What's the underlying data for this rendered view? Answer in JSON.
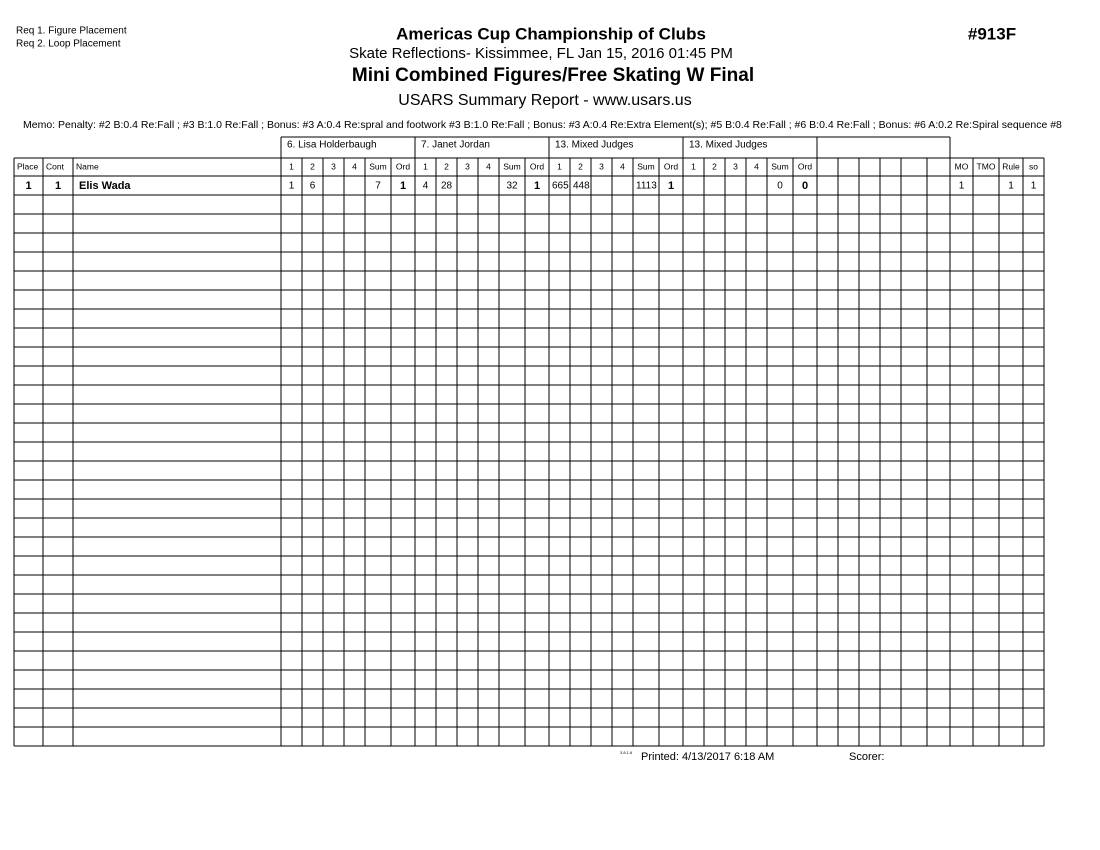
{
  "header": {
    "requirements": [
      "Req  1.  Figure Placement",
      "Req  2.  Loop Placement"
    ],
    "title": "Americas Cup Championship of Clubs",
    "location": "Skate Reflections- Kissimmee, FL  Jan 15, 2016  01:45 PM",
    "event": "Mini Combined Figures/Free Skating W Final",
    "report": "USARS Summary Report - www.usars.us",
    "event_number": "#913F"
  },
  "memo": "Memo: Penalty: #2 B:0.4 Re:Fall ; #3 B:1.0 Re:Fall ; Bonus: #3 A:0.4 Re:spral and footwork #3 B:1.0 Re:Fall ; Bonus: #3 A:0.4 Re:Extra Element(s); #5 B:0.4 Re:Fall ; #6 B:0.4 Re:Fall ; Bonus: #6 A:0.2 Re:Spiral sequence #8",
  "table": {
    "judges": [
      "6.  Lisa Holderbaugh",
      "7.  Janet  Jordan",
      "13.  Mixed Judges",
      "13.  Mixed Judges"
    ],
    "columns": [
      "Place",
      "Cont",
      "Name",
      "1",
      "2",
      "3",
      "4",
      "Sum",
      "Ord",
      "1",
      "2",
      "3",
      "4",
      "Sum",
      "Ord",
      "1",
      "2",
      "3",
      "4",
      "Sum",
      "Ord",
      "1",
      "2",
      "3",
      "4",
      "Sum",
      "Ord",
      null,
      null,
      null,
      null,
      null,
      null,
      "MO",
      "TMO",
      "Rule",
      "so"
    ],
    "rows": [
      [
        1,
        1,
        "Elis Wada",
        1,
        6,
        null,
        null,
        7,
        1,
        4,
        28,
        null,
        null,
        32,
        1,
        665,
        448,
        null,
        null,
        1113,
        1,
        null,
        null,
        null,
        null,
        0,
        0,
        null,
        null,
        null,
        null,
        null,
        null,
        1,
        null,
        1,
        1
      ]
    ]
  },
  "footer": {
    "version": "3.8.1.6",
    "printed": "Printed:  4/13/2017  6:18 AM",
    "scorer": "Scorer:"
  }
}
